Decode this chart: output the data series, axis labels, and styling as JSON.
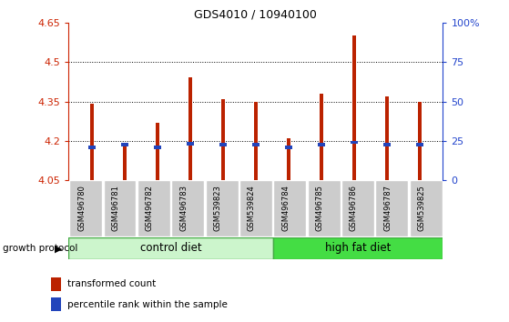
{
  "title": "GDS4010 / 10940100",
  "samples": [
    "GSM496780",
    "GSM496781",
    "GSM496782",
    "GSM496783",
    "GSM539823",
    "GSM539824",
    "GSM496784",
    "GSM496785",
    "GSM496786",
    "GSM496787",
    "GSM539825"
  ],
  "transformed_counts": [
    4.34,
    4.19,
    4.27,
    4.44,
    4.36,
    4.35,
    4.21,
    4.38,
    4.6,
    4.37,
    4.35
  ],
  "percentile_ranks_y": [
    4.175,
    4.185,
    4.175,
    4.19,
    4.185,
    4.185,
    4.175,
    4.185,
    4.195,
    4.185,
    4.185
  ],
  "y_min": 4.05,
  "y_max": 4.65,
  "y_ticks": [
    4.05,
    4.2,
    4.35,
    4.5,
    4.65
  ],
  "y_tick_labels": [
    "4.05",
    "4.2",
    "4.35",
    "4.5",
    "4.65"
  ],
  "right_y_ticks_pct": [
    0,
    25,
    50,
    75,
    100
  ],
  "right_y_labels": [
    "0",
    "25",
    "50",
    "75",
    "100%"
  ],
  "bar_color": "#bb2200",
  "blue_color": "#2244bb",
  "control_diet_samples": 6,
  "control_diet_label": "control diet",
  "high_fat_diet_label": "high fat diet",
  "growth_protocol_label": "growth protocol",
  "legend_red_label": "transformed count",
  "legend_blue_label": "percentile rank within the sample",
  "bg_color_plot": "#ffffff",
  "bg_color_xtick": "#cccccc",
  "control_diet_bg": "#ccf5cc",
  "high_fat_diet_bg": "#44dd44",
  "left_axis_color": "#cc2200",
  "right_axis_color": "#2244cc",
  "bar_width": 0.12,
  "blue_bar_height": 0.012,
  "blue_bar_width": 0.22
}
